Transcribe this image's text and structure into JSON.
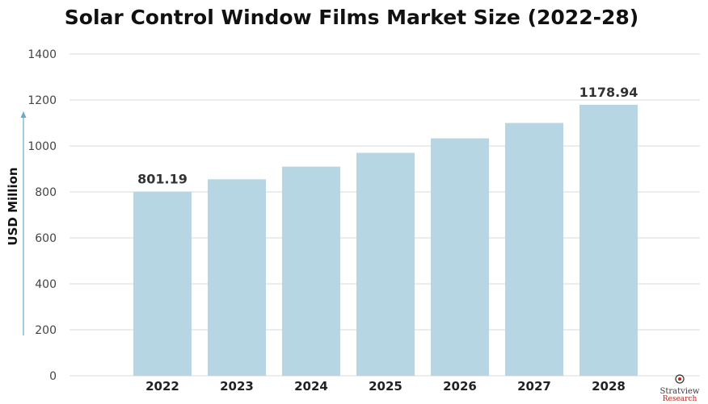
{
  "chart_data": {
    "type": "bar",
    "title": "Solar Control Window Films Market Size (2022-28)",
    "ylabel": "USD Million",
    "xlabel": "",
    "categories": [
      "2022",
      "2023",
      "2024",
      "2025",
      "2026",
      "2027",
      "2028"
    ],
    "values": [
      801.19,
      855,
      910,
      970,
      1033,
      1100,
      1178.94
    ],
    "data_labels": {
      "0": "801.19",
      "6": "1178.94"
    },
    "ylim": [
      0,
      1400
    ],
    "yticks": [
      0,
      200,
      400,
      600,
      800,
      1000,
      1200,
      1400
    ],
    "grid": true,
    "bar_color": "#b7d6e3",
    "grid_color": "#d9d9d9",
    "axis_arrow_color": "#6aa9c8"
  },
  "logo": {
    "line1": "Stratview",
    "line2": "Research"
  }
}
